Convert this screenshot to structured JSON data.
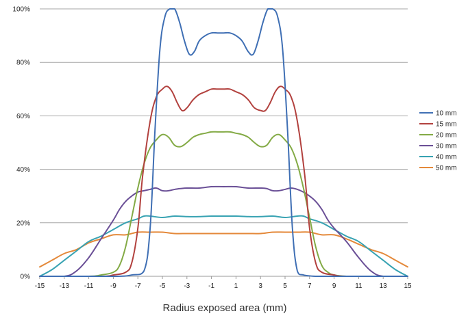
{
  "chart_data": {
    "type": "line",
    "title": "",
    "xlabel": "Radius exposed area (mm)",
    "ylabel": "",
    "xlim": [
      -15,
      15
    ],
    "ylim": [
      0,
      100
    ],
    "x_ticks": [
      -15,
      -13,
      -11,
      -9,
      -7,
      -5,
      -3,
      -1,
      1,
      3,
      5,
      7,
      9,
      11,
      13,
      15
    ],
    "y_ticks": [
      "0%",
      "20%",
      "40%",
      "60%",
      "80%",
      "100%"
    ],
    "y_tick_values": [
      0,
      20,
      40,
      60,
      80,
      100
    ],
    "grid": "horizontal",
    "legend_position": "right",
    "series": [
      {
        "name": "10 mm",
        "color": "#3f6fb4",
        "x": [
          -15,
          -9,
          -7.5,
          -6.5,
          -6,
          -5.6,
          -5.2,
          -4.8,
          -4.4,
          -4,
          -3.6,
          -3.2,
          -2.8,
          -2.4,
          -2,
          -1.5,
          -1,
          -0.5,
          0,
          0.5,
          1,
          1.5,
          2,
          2.4,
          2.8,
          3.2,
          3.6,
          4,
          4.4,
          4.8,
          5.2,
          5.6,
          6,
          6.5,
          7.5,
          9,
          15
        ],
        "y": [
          0,
          0,
          0.5,
          2,
          18,
          55,
          85,
          97,
          100,
          100,
          95,
          88,
          83,
          84,
          88,
          90,
          91,
          91,
          91,
          91,
          90,
          88,
          84,
          83,
          88,
          95,
          100,
          100,
          97,
          85,
          55,
          18,
          2,
          0.5,
          0,
          0,
          0
        ]
      },
      {
        "name": "15 mm",
        "color": "#b2413e",
        "x": [
          -15,
          -10,
          -9,
          -8,
          -7.5,
          -7,
          -6.6,
          -6,
          -5.5,
          -5,
          -4.6,
          -4.2,
          -3.8,
          -3.4,
          -3,
          -2.5,
          -2,
          -1.5,
          -1,
          -0.5,
          0,
          0.5,
          1,
          1.5,
          2,
          2.5,
          3,
          3.4,
          3.8,
          4.2,
          4.6,
          5,
          5.5,
          6,
          6.6,
          7,
          7.5,
          8,
          9,
          10,
          15
        ],
        "y": [
          0,
          0,
          0.5,
          1.5,
          5,
          18,
          38,
          58,
          67,
          70,
          71,
          69,
          65,
          62,
          63,
          66,
          68,
          69,
          70,
          70,
          70,
          70,
          69,
          68,
          66,
          63,
          62,
          62,
          65,
          69,
          71,
          70,
          67,
          58,
          38,
          18,
          5,
          1.5,
          0.5,
          0,
          0
        ]
      },
      {
        "name": "20 mm",
        "color": "#83aa45",
        "x": [
          -15,
          -11,
          -10,
          -9,
          -8.5,
          -8,
          -7.5,
          -7,
          -6.5,
          -6,
          -5.5,
          -5,
          -4.5,
          -4,
          -3.5,
          -3,
          -2.5,
          -2,
          -1.5,
          -1,
          -0.5,
          0,
          0.5,
          1,
          1.5,
          2,
          2.5,
          3,
          3.5,
          4,
          4.5,
          5,
          5.5,
          6,
          6.5,
          7,
          7.5,
          8,
          8.5,
          9,
          10,
          11,
          15
        ],
        "y": [
          0,
          0,
          0.5,
          1.5,
          4,
          11,
          22,
          33,
          42,
          48,
          51,
          53,
          52,
          49,
          48.5,
          50,
          52,
          53,
          53.5,
          54,
          54,
          54,
          54,
          53.5,
          53,
          52,
          50,
          48.5,
          49,
          52,
          53,
          51,
          48,
          42,
          33,
          22,
          11,
          4,
          1.5,
          0.5,
          0,
          0,
          0
        ]
      },
      {
        "name": "30 mm",
        "color": "#6a4f96",
        "x": [
          -15,
          -13,
          -12,
          -11,
          -10,
          -9,
          -8.5,
          -8,
          -7.5,
          -7,
          -6.5,
          -6,
          -5.5,
          -5,
          -4.5,
          -4,
          -3.5,
          -3,
          -2,
          -1,
          0,
          1,
          2,
          3,
          3.5,
          4,
          4.5,
          5,
          5.5,
          6,
          6.5,
          7,
          7.5,
          8,
          8.5,
          9,
          10,
          11,
          12,
          13,
          15
        ],
        "y": [
          0,
          0,
          2,
          7,
          14,
          21,
          25,
          28,
          30,
          31.5,
          32,
          32.5,
          33,
          32,
          32,
          32.5,
          32.8,
          33,
          33,
          33.5,
          33.5,
          33.5,
          33,
          33,
          32.8,
          32,
          32,
          32.5,
          33,
          32.5,
          31.5,
          30,
          28,
          25,
          21,
          18,
          13,
          7,
          2,
          0,
          0
        ]
      },
      {
        "name": "40 mm",
        "color": "#37a2b2",
        "x": [
          -15,
          -14,
          -13,
          -12,
          -11,
          -10,
          -9,
          -8,
          -7,
          -6.5,
          -6,
          -5,
          -4,
          -3,
          -2,
          -1,
          0,
          1,
          2,
          3,
          4,
          5,
          6,
          6.5,
          7,
          8,
          9,
          10,
          11,
          12,
          13,
          14,
          15
        ],
        "y": [
          0,
          2.5,
          6,
          9.5,
          13,
          15,
          17.5,
          20,
          21.5,
          22.5,
          22.5,
          22,
          22.5,
          22.3,
          22.3,
          22.5,
          22.5,
          22.5,
          22.3,
          22.3,
          22.5,
          22,
          22.5,
          22.5,
          21.5,
          20,
          17.5,
          15,
          13,
          9.5,
          6,
          2.5,
          0
        ]
      },
      {
        "name": "50 mm",
        "color": "#e4893a",
        "x": [
          -15,
          -14,
          -13,
          -12,
          -11,
          -10,
          -9,
          -8,
          -7,
          -6,
          -5,
          -4,
          -3,
          -2,
          -1,
          0,
          1,
          2,
          3,
          4,
          5,
          6,
          7,
          8,
          9,
          10,
          11,
          12,
          13,
          14,
          15
        ],
        "y": [
          3.5,
          6,
          8.5,
          10,
          12.5,
          14,
          15.5,
          15.5,
          16.5,
          16.5,
          16.5,
          16,
          16,
          16,
          16,
          16,
          16,
          16,
          16,
          16.5,
          16.5,
          16.5,
          16.5,
          15.5,
          15.5,
          14,
          12,
          10,
          8.5,
          6,
          3.5
        ]
      }
    ]
  }
}
